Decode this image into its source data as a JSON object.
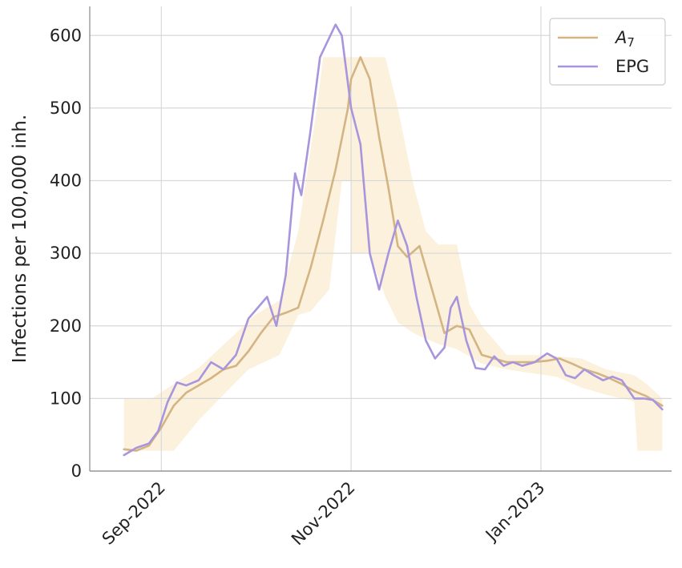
{
  "chart_data": {
    "type": "line",
    "ylabel": "Infections per 100,000 inh.",
    "ylim": [
      0,
      640
    ],
    "yticks": [
      0,
      100,
      200,
      300,
      400,
      500,
      600
    ],
    "xlim": [
      "2022-08-09",
      "2023-02-12"
    ],
    "xticks": [
      {
        "date": "2022-09-01",
        "label": "Sep-2022"
      },
      {
        "date": "2022-11-01",
        "label": "Nov-2022"
      },
      {
        "date": "2023-01-01",
        "label": "Jan-2023"
      }
    ],
    "grid": true,
    "legend": "top-right",
    "colors": {
      "a7": "#d4b483",
      "epg": "#a895dc",
      "band": "#fbf1dc",
      "grid": "#d9d9d9"
    },
    "series": [
      {
        "name": "A",
        "name_sub": "7",
        "color": "#d4b483",
        "points": [
          [
            "2022-08-20",
            30
          ],
          [
            "2022-08-24",
            28
          ],
          [
            "2022-08-28",
            35
          ],
          [
            "2022-09-01",
            60
          ],
          [
            "2022-09-05",
            90
          ],
          [
            "2022-09-09",
            108
          ],
          [
            "2022-09-13",
            118
          ],
          [
            "2022-09-17",
            128
          ],
          [
            "2022-09-21",
            140
          ],
          [
            "2022-09-25",
            145
          ],
          [
            "2022-09-29",
            165
          ],
          [
            "2022-10-03",
            190
          ],
          [
            "2022-10-07",
            212
          ],
          [
            "2022-10-11",
            218
          ],
          [
            "2022-10-15",
            225
          ],
          [
            "2022-10-19",
            280
          ],
          [
            "2022-10-23",
            345
          ],
          [
            "2022-10-27",
            415
          ],
          [
            "2022-10-31",
            500
          ],
          [
            "2022-11-01",
            540
          ],
          [
            "2022-11-04",
            570
          ],
          [
            "2022-11-07",
            540
          ],
          [
            "2022-11-10",
            460
          ],
          [
            "2022-11-13",
            390
          ],
          [
            "2022-11-16",
            310
          ],
          [
            "2022-11-19",
            295
          ],
          [
            "2022-11-23",
            310
          ],
          [
            "2022-11-27",
            250
          ],
          [
            "2022-12-01",
            190
          ],
          [
            "2022-12-05",
            200
          ],
          [
            "2022-12-09",
            195
          ],
          [
            "2022-12-13",
            160
          ],
          [
            "2022-12-17",
            155
          ],
          [
            "2022-12-21",
            150
          ],
          [
            "2022-12-25",
            150
          ],
          [
            "2022-12-29",
            150
          ],
          [
            "2023-01-03",
            152
          ],
          [
            "2023-01-07",
            155
          ],
          [
            "2023-01-11",
            148
          ],
          [
            "2023-01-15",
            140
          ],
          [
            "2023-01-19",
            135
          ],
          [
            "2023-01-23",
            128
          ],
          [
            "2023-01-27",
            120
          ],
          [
            "2023-01-31",
            110
          ],
          [
            "2023-02-04",
            103
          ],
          [
            "2023-02-09",
            90
          ]
        ]
      },
      {
        "name": "EPG",
        "color": "#a895dc",
        "points": [
          [
            "2022-08-20",
            22
          ],
          [
            "2022-08-24",
            32
          ],
          [
            "2022-08-28",
            38
          ],
          [
            "2022-08-31",
            55
          ],
          [
            "2022-09-03",
            95
          ],
          [
            "2022-09-06",
            122
          ],
          [
            "2022-09-09",
            118
          ],
          [
            "2022-09-13",
            125
          ],
          [
            "2022-09-17",
            150
          ],
          [
            "2022-09-21",
            140
          ],
          [
            "2022-09-25",
            160
          ],
          [
            "2022-09-29",
            210
          ],
          [
            "2022-10-01",
            220
          ],
          [
            "2022-10-05",
            240
          ],
          [
            "2022-10-08",
            200
          ],
          [
            "2022-10-11",
            270
          ],
          [
            "2022-10-14",
            410
          ],
          [
            "2022-10-16",
            380
          ],
          [
            "2022-10-19",
            470
          ],
          [
            "2022-10-22",
            570
          ],
          [
            "2022-10-27",
            615
          ],
          [
            "2022-10-29",
            600
          ],
          [
            "2022-11-01",
            500
          ],
          [
            "2022-11-04",
            450
          ],
          [
            "2022-11-07",
            300
          ],
          [
            "2022-11-10",
            250
          ],
          [
            "2022-11-13",
            300
          ],
          [
            "2022-11-16",
            345
          ],
          [
            "2022-11-19",
            310
          ],
          [
            "2022-11-22",
            240
          ],
          [
            "2022-11-25",
            180
          ],
          [
            "2022-11-28",
            155
          ],
          [
            "2022-12-01",
            170
          ],
          [
            "2022-12-03",
            225
          ],
          [
            "2022-12-05",
            240
          ],
          [
            "2022-12-08",
            180
          ],
          [
            "2022-12-11",
            142
          ],
          [
            "2022-12-14",
            140
          ],
          [
            "2022-12-17",
            158
          ],
          [
            "2022-12-20",
            145
          ],
          [
            "2022-12-23",
            150
          ],
          [
            "2022-12-26",
            145
          ],
          [
            "2022-12-30",
            150
          ],
          [
            "2023-01-03",
            162
          ],
          [
            "2023-01-06",
            155
          ],
          [
            "2023-01-09",
            132
          ],
          [
            "2023-01-12",
            128
          ],
          [
            "2023-01-15",
            140
          ],
          [
            "2023-01-18",
            132
          ],
          [
            "2023-01-21",
            125
          ],
          [
            "2023-01-24",
            130
          ],
          [
            "2023-01-27",
            125
          ],
          [
            "2023-01-31",
            100
          ],
          [
            "2023-02-03",
            100
          ],
          [
            "2023-02-06",
            98
          ],
          [
            "2023-02-09",
            85
          ]
        ]
      }
    ],
    "band_upper": [
      [
        "2022-08-20",
        100
      ],
      [
        "2022-08-29",
        100
      ],
      [
        "2022-09-05",
        120
      ],
      [
        "2022-09-13",
        142
      ],
      [
        "2022-09-25",
        190
      ],
      [
        "2022-10-01",
        215
      ],
      [
        "2022-10-09",
        235
      ],
      [
        "2022-10-15",
        330
      ],
      [
        "2022-10-21",
        500
      ],
      [
        "2022-10-23",
        570
      ],
      [
        "2022-11-12",
        570
      ],
      [
        "2022-11-16",
        500
      ],
      [
        "2022-11-21",
        395
      ],
      [
        "2022-11-25",
        330
      ],
      [
        "2022-11-29",
        312
      ],
      [
        "2022-12-05",
        312
      ],
      [
        "2022-12-09",
        230
      ],
      [
        "2022-12-13",
        200
      ],
      [
        "2022-12-21",
        160
      ],
      [
        "2022-12-29",
        160
      ],
      [
        "2023-01-06",
        158
      ],
      [
        "2023-01-14",
        155
      ],
      [
        "2023-01-22",
        140
      ],
      [
        "2023-01-31",
        132
      ],
      [
        "2023-02-04",
        120
      ],
      [
        "2023-02-09",
        100
      ]
    ],
    "band_lower": [
      [
        "2022-08-20",
        28
      ],
      [
        "2022-09-05",
        28
      ],
      [
        "2022-09-13",
        70
      ],
      [
        "2022-09-21",
        105
      ],
      [
        "2022-09-29",
        140
      ],
      [
        "2022-10-09",
        160
      ],
      [
        "2022-10-15",
        215
      ],
      [
        "2022-10-19",
        220
      ],
      [
        "2022-10-25",
        250
      ],
      [
        "2022-10-29",
        400
      ],
      [
        "2022-11-01",
        400
      ],
      [
        "2022-11-01",
        300
      ],
      [
        "2022-11-07",
        300
      ],
      [
        "2022-11-12",
        240
      ],
      [
        "2022-11-16",
        205
      ],
      [
        "2022-11-21",
        190
      ],
      [
        "2022-11-29",
        175
      ],
      [
        "2022-12-05",
        168
      ],
      [
        "2022-12-13",
        148
      ],
      [
        "2022-12-21",
        140
      ],
      [
        "2022-12-29",
        135
      ],
      [
        "2023-01-06",
        130
      ],
      [
        "2023-01-14",
        115
      ],
      [
        "2023-01-22",
        105
      ],
      [
        "2023-01-31",
        96
      ],
      [
        "2023-02-01",
        28
      ],
      [
        "2023-02-09",
        28
      ]
    ]
  }
}
